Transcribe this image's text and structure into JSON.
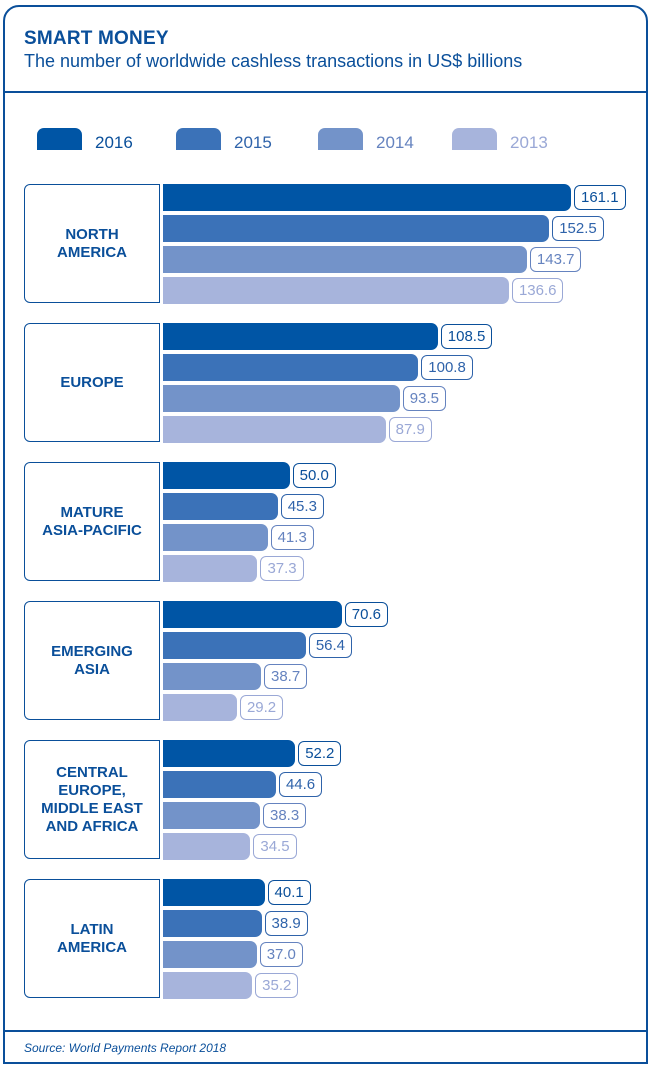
{
  "chart_data": {
    "type": "bar",
    "orientation": "horizontal",
    "title": "SMART MONEY",
    "subtitle": "The number of worldwide cashless transactions in US$ billions",
    "categories": [
      "NORTH\nAMERICA",
      "EUROPE",
      "MATURE\nASIA-PACIFIC",
      "EMERGING\nASIA",
      "CENTRAL\nEUROPE,\nMIDDLE EAST\nAND AFRICA",
      "LATIN\nAMERICA"
    ],
    "series": [
      {
        "name": "2016",
        "color": "#0055a5",
        "text_color": "#0a4f9a",
        "values": [
          161.1,
          108.5,
          50.0,
          70.6,
          52.2,
          40.1
        ]
      },
      {
        "name": "2015",
        "color": "#3b72b8",
        "text_color": "#2f63aa",
        "values": [
          152.5,
          100.8,
          45.3,
          56.4,
          44.6,
          38.9
        ]
      },
      {
        "name": "2014",
        "color": "#7393c9",
        "text_color": "#6583bf",
        "values": [
          143.7,
          93.5,
          41.3,
          38.7,
          38.3,
          37.0
        ]
      },
      {
        "name": "2013",
        "color": "#a7b4dc",
        "text_color": "#9aa8d6",
        "values": [
          136.6,
          87.9,
          37.3,
          29.2,
          34.5,
          35.2
        ]
      }
    ],
    "value_labels": [
      [
        "161.1",
        "108.5",
        "50.0",
        "70.6",
        "52.2",
        "40.1"
      ],
      [
        "152.5",
        "100.8",
        "45.3",
        "56.4",
        "44.6",
        "38.9"
      ],
      [
        "143.7",
        "93.5",
        "41.3",
        "38.7",
        "38.3",
        "37.0"
      ],
      [
        "136.6",
        "87.9",
        "37.3",
        "29.2",
        "34.5",
        "35.2"
      ]
    ],
    "xlim": [
      0,
      161.1
    ],
    "grid": false,
    "legend_position": "top"
  },
  "source": "Source: World Payments Report 2018"
}
